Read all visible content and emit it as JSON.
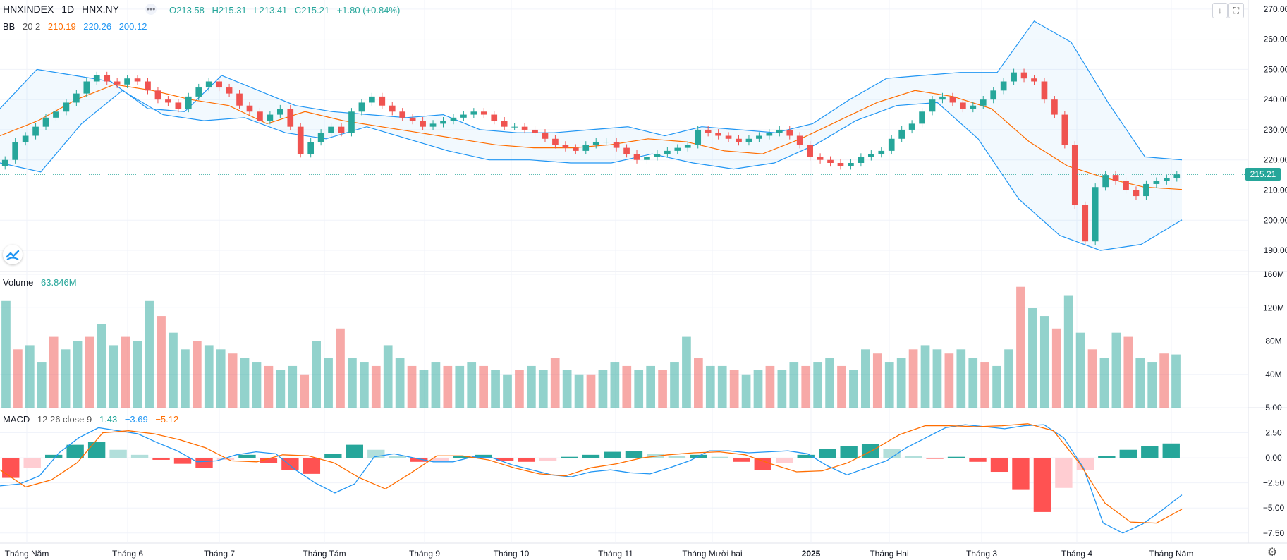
{
  "header": {
    "symbol": "HNXINDEX",
    "interval": "1D",
    "exchange": "HNX.NY",
    "open": "O213.58",
    "high": "H215.31",
    "low": "L213.41",
    "close": "C215.21",
    "change": "+1.80 (+0.84%)"
  },
  "bb": {
    "label": "BB",
    "params": "20 2",
    "basis": "210.19",
    "upper": "220.26",
    "lower": "200.12"
  },
  "volume": {
    "label": "Volume",
    "value": "63.846M"
  },
  "macd": {
    "label": "MACD",
    "params": "12 26 close 9",
    "hist": "1.43",
    "macd": "−3.69",
    "signal": "−5.12"
  },
  "last_price": "215.21",
  "icons": [
    "arrow-down-icon",
    "fullscreen-icon",
    "tradingview-logo-icon",
    "settings-gear-icon"
  ],
  "colors": {
    "up": "#26a69a",
    "down": "#ef5350",
    "bb_band": "#2196f3",
    "bb_basis": "#ff6d00",
    "macd_line": "#2196f3",
    "signal_line": "#ff6d00"
  },
  "chart_data": [
    {
      "type": "candlestick",
      "title": "HNXINDEX",
      "x_ticks": [
        "Tháng Năm",
        "Tháng 6",
        "Tháng 7",
        "Tháng Tám",
        "Tháng 9",
        "Tháng 10",
        "Tháng 11",
        "Tháng Mười hai",
        "2025",
        "Tháng Hai",
        "Tháng 3",
        "Tháng 4",
        "Tháng Năm"
      ],
      "y_ticks": [
        "270.00",
        "260.00",
        "250.00",
        "240.00",
        "230.00",
        "220.00",
        "210.00",
        "200.00",
        "190.00"
      ],
      "ylim": [
        183,
        273
      ],
      "grid": true,
      "series": [
        {
          "name": "Close",
          "values": [
            220,
            226,
            228,
            231,
            234,
            236,
            239,
            242,
            246,
            248,
            246,
            245,
            247,
            246,
            243,
            240,
            239,
            237,
            241,
            244,
            246,
            244,
            242,
            238,
            236,
            233,
            235,
            237,
            231,
            222,
            226,
            229,
            231,
            229,
            236,
            239,
            241,
            238,
            236,
            234,
            233,
            231,
            232,
            233,
            234,
            235,
            236,
            235,
            233,
            231,
            231,
            230,
            229,
            227,
            225,
            224,
            223,
            225,
            226,
            226,
            224,
            222,
            220,
            221,
            222,
            223,
            224,
            225,
            230,
            229,
            228,
            227,
            226,
            227,
            228,
            229,
            230,
            228,
            225,
            221,
            220,
            219,
            218,
            219,
            221,
            222,
            223,
            227,
            230,
            232,
            236,
            240,
            241,
            239,
            237,
            238,
            240,
            243,
            246,
            249,
            247,
            246,
            240,
            235,
            225,
            205,
            193,
            211,
            215,
            213,
            210,
            208,
            212,
            213,
            214,
            215.21
          ]
        },
        {
          "name": "BB upper",
          "values": [
            237,
            250,
            248,
            246,
            237,
            236,
            248,
            243,
            238,
            236,
            235,
            234,
            235,
            230,
            229,
            229,
            230,
            231,
            228,
            231,
            230,
            229,
            232,
            240,
            247,
            248,
            249,
            249,
            266,
            259,
            239,
            221,
            220
          ]
        },
        {
          "name": "BB basis",
          "values": [
            228,
            233,
            240,
            245,
            243,
            240,
            238,
            232,
            236,
            233,
            231,
            229,
            227,
            225,
            224,
            224,
            225,
            227,
            226,
            223,
            222,
            227,
            233,
            239,
            243,
            241,
            237,
            226,
            218,
            214,
            211,
            210.19
          ]
        },
        {
          "name": "BB lower",
          "values": [
            219,
            216,
            232,
            243,
            235,
            233,
            234,
            229,
            227,
            231,
            227,
            223,
            220,
            220,
            219,
            219,
            222,
            219,
            217,
            219,
            225,
            233,
            238,
            239,
            227,
            207,
            195,
            190,
            192,
            200.12
          ]
        }
      ]
    },
    {
      "type": "bar",
      "title": "Volume",
      "y_ticks": [
        "160M",
        "120M",
        "80M",
        "40M"
      ],
      "ylim": [
        0,
        160
      ],
      "values": [
        128,
        70,
        75,
        55,
        85,
        70,
        80,
        85,
        100,
        75,
        85,
        80,
        128,
        110,
        90,
        70,
        80,
        75,
        70,
        65,
        60,
        55,
        50,
        45,
        50,
        40,
        80,
        60,
        95,
        60,
        55,
        50,
        75,
        60,
        50,
        45,
        55,
        50,
        50,
        55,
        50,
        45,
        40,
        45,
        50,
        45,
        60,
        45,
        40,
        40,
        45,
        55,
        50,
        45,
        50,
        45,
        55,
        85,
        60,
        50,
        50,
        45,
        40,
        45,
        50,
        45,
        55,
        50,
        55,
        60,
        50,
        45,
        70,
        65,
        55,
        60,
        70,
        75,
        70,
        65,
        70,
        60,
        55,
        50,
        70,
        145,
        120,
        110,
        95,
        135,
        90,
        70,
        60,
        90,
        85,
        60,
        55,
        65,
        63.846
      ]
    },
    {
      "type": "line",
      "title": "MACD",
      "y_ticks": [
        "5.00",
        "2.50",
        "0.00",
        "−2.50",
        "−5.00",
        "−7.50"
      ],
      "ylim": [
        -8.5,
        5
      ],
      "series": [
        {
          "name": "MACD",
          "values": [
            -2.8,
            -2.6,
            -1.8,
            0.5,
            2.0,
            3.0,
            2.7,
            2.4,
            1.5,
            0.7,
            -0.4,
            -0.3,
            0.3,
            0.6,
            0.4,
            -1.2,
            -2.5,
            -3.5,
            -2.6,
            0.1,
            0.4,
            0.0,
            -0.4,
            -0.4,
            0.1,
            0.0,
            -0.7,
            -1.2,
            -1.7,
            -1.9,
            -1.4,
            -1.2,
            -1.5,
            -1.6,
            -1.0,
            -0.3,
            0.7,
            0.7,
            0.5,
            0.6,
            0.7,
            0.4,
            -0.8,
            -1.7,
            -1.0,
            -0.3,
            1.0,
            2.0,
            3.0,
            3.3,
            3.1,
            2.9,
            3.2,
            3.3,
            2.0,
            -1.0,
            -6.5,
            -7.5,
            -6.6,
            -5.2,
            -3.69
          ]
        },
        {
          "name": "Signal",
          "values": [
            -1.2,
            -2.9,
            -2.2,
            -0.5,
            2.5,
            2.7,
            2.4,
            1.8,
            1.0,
            -0.3,
            -0.4,
            0.3,
            0.2,
            -0.5,
            -2.0,
            -3.1,
            -1.5,
            0.2,
            0.2,
            -0.2,
            -1.0,
            -1.6,
            -1.8,
            -1.0,
            -0.6,
            0.0,
            0.3,
            0.5,
            0.6,
            0.3,
            -0.6,
            -1.4,
            -1.3,
            -0.5,
            0.8,
            2.3,
            3.2,
            3.2,
            3.1,
            3.2,
            3.4,
            2.7,
            -0.5,
            -4.5,
            -6.4,
            -6.5,
            -5.12
          ]
        },
        {
          "name": "Histogram",
          "values": [
            -2.0,
            -1.0,
            0.3,
            1.3,
            1.6,
            0.8,
            0.3,
            -0.2,
            -0.6,
            -1.0,
            -0.2,
            0.3,
            -0.5,
            -1.2,
            -1.6,
            0.4,
            1.3,
            0.8,
            0.2,
            -0.4,
            -0.3,
            0.2,
            0.3,
            -0.3,
            -0.4,
            -0.3,
            0.1,
            0.3,
            0.6,
            0.7,
            0.4,
            0.2,
            0.3,
            0.1,
            -0.4,
            -1.2,
            -0.5,
            0.3,
            0.9,
            1.2,
            1.4,
            0.9,
            0.2,
            -0.1,
            0.1,
            -0.4,
            -1.4,
            -3.2,
            -5.4,
            -3.0,
            -1.2,
            0.2,
            0.8,
            1.2,
            1.43
          ]
        }
      ]
    }
  ]
}
